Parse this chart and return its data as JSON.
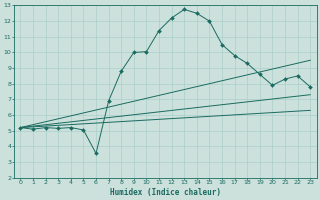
{
  "title": "",
  "xlabel": "Humidex (Indice chaleur)",
  "background_color": "#cce0dc",
  "grid_color": "#aacfcb",
  "line_color": "#1a6b60",
  "xlim": [
    -0.5,
    23.5
  ],
  "ylim": [
    2,
    13
  ],
  "xticks": [
    0,
    1,
    2,
    3,
    4,
    5,
    6,
    7,
    8,
    9,
    10,
    11,
    12,
    13,
    14,
    15,
    16,
    17,
    18,
    19,
    20,
    21,
    22,
    23
  ],
  "yticks": [
    2,
    3,
    4,
    5,
    6,
    7,
    8,
    9,
    10,
    11,
    12,
    13
  ],
  "main_x": [
    0,
    1,
    2,
    3,
    4,
    5,
    6,
    7,
    8,
    9,
    10,
    11,
    12,
    13,
    14,
    15,
    16,
    17,
    18,
    19,
    20,
    21,
    22,
    23
  ],
  "main_y": [
    5.2,
    5.1,
    5.2,
    5.15,
    5.2,
    5.05,
    3.55,
    6.9,
    8.8,
    10.0,
    10.05,
    11.4,
    12.2,
    12.75,
    12.5,
    12.0,
    10.5,
    9.8,
    9.3,
    8.6,
    7.9,
    8.3,
    8.5,
    7.8
  ],
  "line1_x": [
    0,
    23
  ],
  "line1_y": [
    5.2,
    7.3
  ],
  "line2_x": [
    0,
    23
  ],
  "line2_y": [
    5.2,
    6.3
  ],
  "line3_x": [
    0,
    23
  ],
  "line3_y": [
    5.2,
    9.5
  ]
}
